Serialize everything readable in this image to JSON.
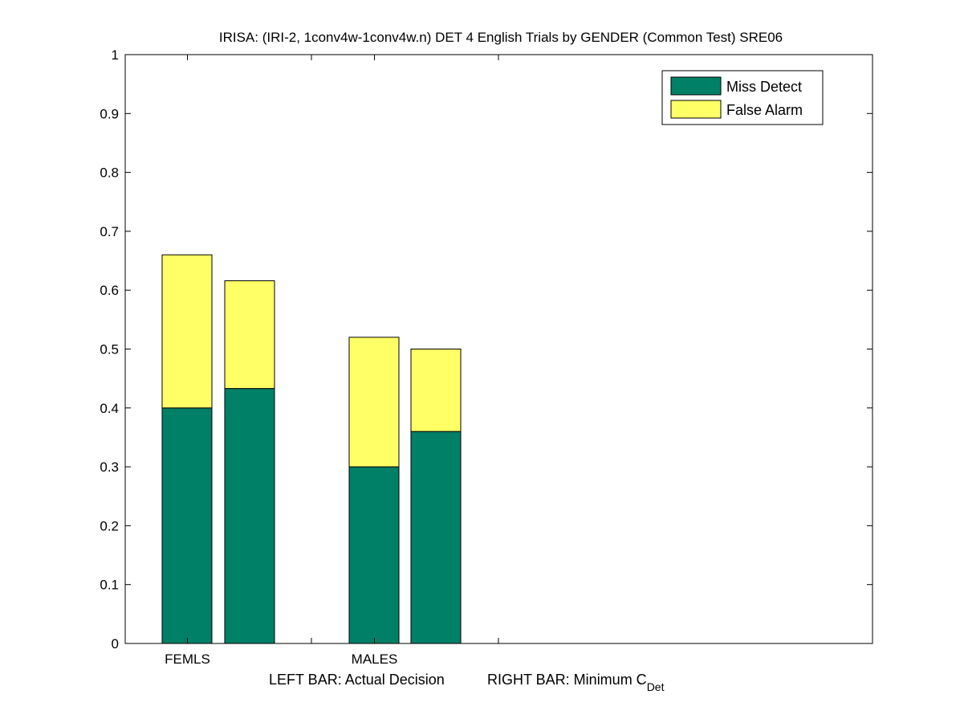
{
  "chart_data": {
    "type": "bar",
    "stacked": true,
    "title": "IRISA: (IRI-2, 1conv4w-1conv4w.n) DET 4 English Trials by GENDER (Common Test) SRE06",
    "xlabel_left": "LEFT BAR: Actual Decision",
    "xlabel_right": "RIGHT BAR: Minimum C",
    "xlabel_right_subscript": "Det",
    "categories": [
      "FEMLS",
      "MALES"
    ],
    "bars_per_category": [
      "Actual Decision",
      "Minimum C_Det"
    ],
    "series": [
      {
        "name": "Miss Detect",
        "color": "#008066",
        "values": [
          [
            0.4,
            0.433
          ],
          [
            0.3,
            0.36
          ]
        ]
      },
      {
        "name": "False Alarm",
        "color": "#ffff66",
        "values": [
          [
            0.26,
            0.183
          ],
          [
            0.22,
            0.14
          ]
        ]
      }
    ],
    "totals": [
      [
        0.66,
        0.616
      ],
      [
        0.52,
        0.5
      ]
    ],
    "ylim": [
      0,
      1
    ],
    "yticks": [
      "0",
      "0.1",
      "0.2",
      "0.3",
      "0.4",
      "0.5",
      "0.6",
      "0.7",
      "0.8",
      "0.9",
      "1"
    ],
    "grid": false,
    "legend_position": "top-right"
  }
}
